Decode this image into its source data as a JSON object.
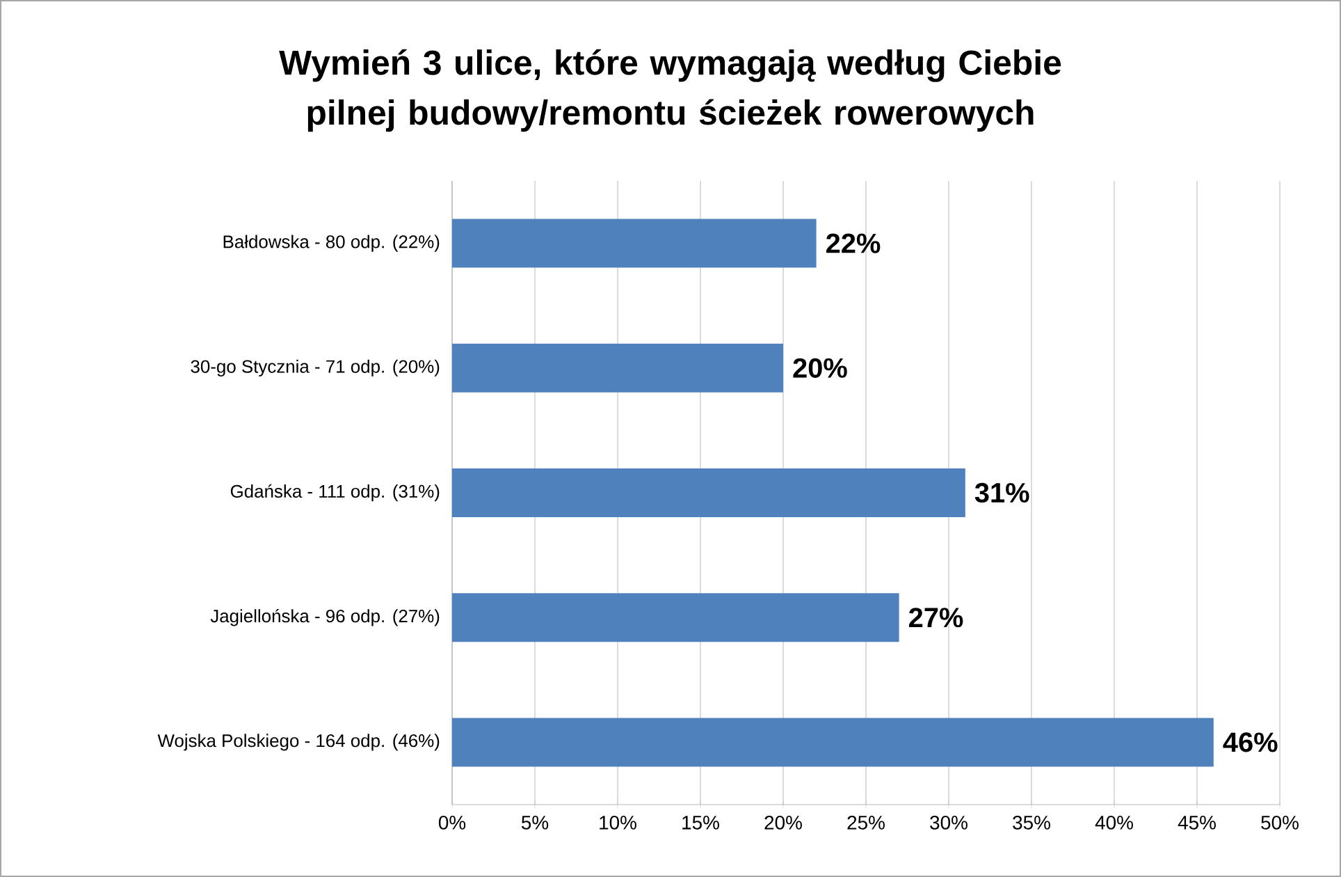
{
  "chart_data": {
    "type": "bar",
    "orientation": "horizontal",
    "title": "Wymień 3 ulice, które wymagają według Ciebie\npilnej budowy/remontu ścieżek rowerowych",
    "categories": [
      "Bałdowska - 80 odp. (22%)",
      "30-go Stycznia - 71 odp. (20%)",
      "Gdańska - 111 odp. (31%)",
      "Jagiellońska - 96 odp. (27%)",
      "Wojska Polskiego - 164 odp. (46%)"
    ],
    "values": [
      22,
      20,
      31,
      27,
      46
    ],
    "value_labels": [
      "22%",
      "20%",
      "31%",
      "27%",
      "46%"
    ],
    "color": "#4f81bd",
    "xlim": [
      0,
      50
    ],
    "xticks": [
      {
        "value": 0,
        "label": "0%"
      },
      {
        "value": 5,
        "label": "5%"
      },
      {
        "value": 10,
        "label": "10%"
      },
      {
        "value": 15,
        "label": "15%"
      },
      {
        "value": 20,
        "label": "20%"
      },
      {
        "value": 25,
        "label": "25%"
      },
      {
        "value": 30,
        "label": "30%"
      },
      {
        "value": 35,
        "label": "35%"
      },
      {
        "value": 40,
        "label": "40%"
      },
      {
        "value": 45,
        "label": "45%"
      },
      {
        "value": 50,
        "label": "50%"
      }
    ],
    "grid": "x"
  }
}
